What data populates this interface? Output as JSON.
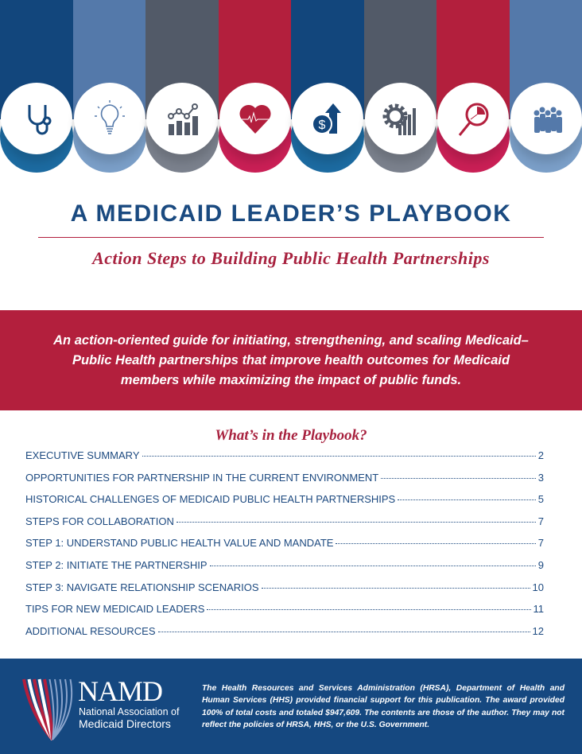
{
  "colors": {
    "dark_blue": "#12467c",
    "light_blue": "#5479aa",
    "gray": "#525a68",
    "red": "#b31f3d"
  },
  "banner": {
    "icons": [
      "stethoscope-icon",
      "lightbulb-icon",
      "line-bar-chart-icon",
      "heart-pulse-icon",
      "dollar-growth-icon",
      "gear-bar-chart-icon",
      "magnifier-pie-chart-icon",
      "people-group-icon"
    ]
  },
  "title": "A MEDICAID LEADER’S PLAYBOOK",
  "subtitle": "Action Steps to Building Public Health Partnerships",
  "summary": "An action-oriented guide for initiating, strengthening, and scaling Medicaid–Public Health partnerships that improve health outcomes for Medicaid members while maximizing the impact of public funds.",
  "toc": {
    "heading": "What’s in the Playbook?",
    "items": [
      {
        "label": "EXECUTIVE SUMMARY",
        "page": "2"
      },
      {
        "label": "OPPORTUNITIES FOR PARTNERSHIP IN THE CURRENT ENVIRONMENT",
        "page": "3"
      },
      {
        "label": "HISTORICAL CHALLENGES OF MEDICAID PUBLIC HEALTH PARTNERSHIPS",
        "page": "5"
      },
      {
        "label": "STEPS FOR COLLABORATION",
        "page": "7"
      },
      {
        "label": "STEP 1: UNDERSTAND PUBLIC HEALTH VALUE AND MANDATE",
        "page": "7"
      },
      {
        "label": "STEP 2: INITIATE THE PARTNERSHIP",
        "page": "9"
      },
      {
        "label": "STEP 3: NAVIGATE RELATIONSHIP SCENARIOS",
        "page": "10"
      },
      {
        "label": "TIPS FOR NEW MEDICAID LEADERS",
        "page": "11"
      },
      {
        "label": "ADDITIONAL RESOURCES",
        "page": "12"
      }
    ]
  },
  "footer": {
    "logo_text": "NAMD",
    "org_line1": "National Association of",
    "org_line2": "Medicaid Directors",
    "disclaimer": "The Health Resources and Services Administration (HRSA), Department of Health and Human Services (HHS) provided financial support for this publication. The award provided 100% of total costs and totaled $947,609. The contents are those of the author. They may not reflect the policies of HRSA, HHS, or the U.S. Government."
  }
}
